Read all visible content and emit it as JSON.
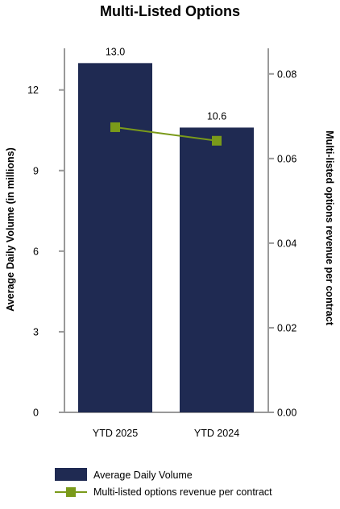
{
  "chart_data": {
    "type": "bar",
    "title": "Multi-Listed Options",
    "categories": [
      "YTD 2025",
      "YTD 2024"
    ],
    "ylabel": "Average Daily Volume (in millions)",
    "y2label": "Multi-listed options revenue per contract",
    "ylim": [
      0,
      13.7
    ],
    "y2lim": [
      0,
      0.087
    ],
    "yticks": [
      "0",
      "3",
      "6",
      "9",
      "12"
    ],
    "y2ticks": [
      "0.00",
      "0.02",
      "0.04",
      "0.06",
      "0.08"
    ],
    "grid": false,
    "legend_position": "bottom",
    "series": [
      {
        "name": "Average Daily Volume",
        "type": "bar",
        "axis": "left",
        "color": "#1f2a52",
        "values": [
          13.0,
          10.6
        ],
        "labels": [
          "13.0",
          "10.6"
        ]
      },
      {
        "name": "Multi-listed options revenue per contract",
        "type": "line",
        "axis": "right",
        "color": "#7a9a1a",
        "marker": "square",
        "values": [
          0.0674,
          0.0642
        ]
      }
    ]
  }
}
